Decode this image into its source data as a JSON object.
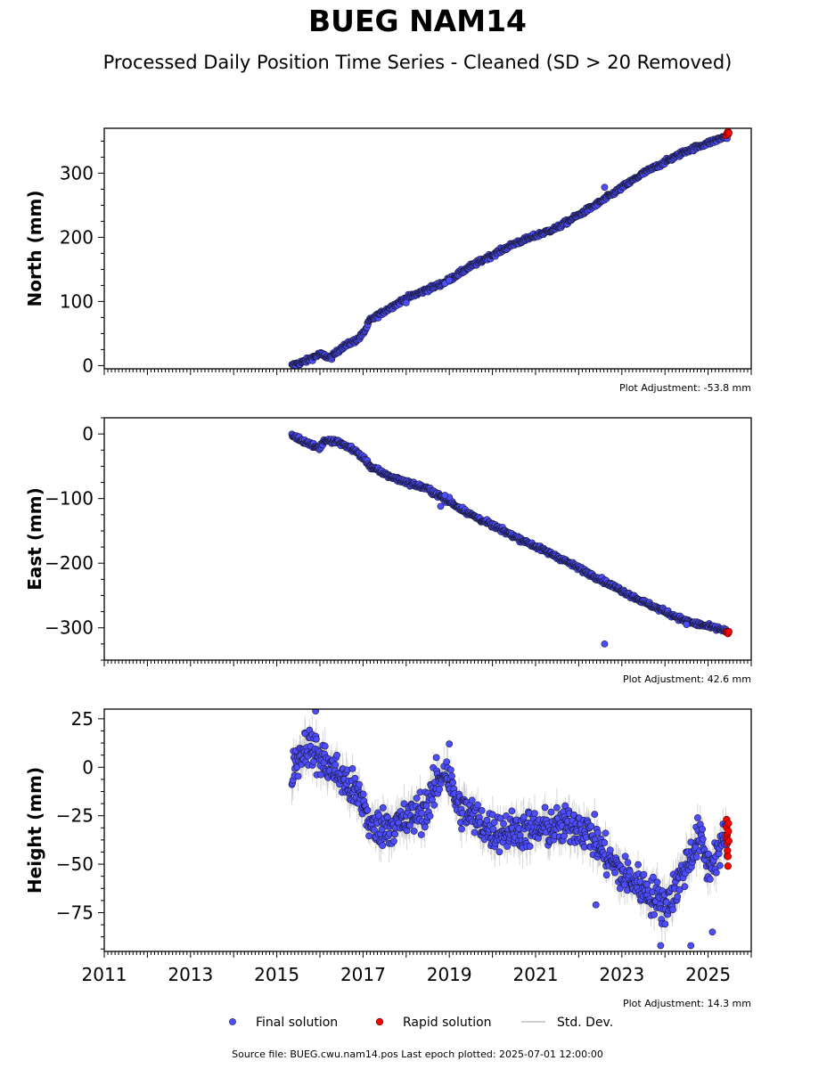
{
  "title": "BUEG NAM14",
  "subtitle": "Processed Daily Position Time Series - Cleaned (SD > 20 Removed)",
  "colors": {
    "final": "#4d4dff",
    "final_edge": "#1a1a3a",
    "rapid": "#ff0000",
    "std": "#bdbdbd"
  },
  "legend": {
    "final": "Final solution",
    "rapid": "Rapid solution",
    "std": "Std. Dev.",
    "placement": "bottom-center"
  },
  "footer": {
    "source": "Source file: BUEG.cwu.nam14.pos",
    "last_epoch": "Last epoch plotted: 2025-07-01 12:00:00"
  },
  "chart_data": [
    {
      "type": "scatter",
      "ylabel": "North (mm)",
      "adjustment": "Plot Adjustment: -53.8 mm",
      "xlim": [
        2011,
        2026
      ],
      "ylim": [
        -5,
        370
      ],
      "yticks": [
        0,
        100,
        200,
        300
      ],
      "ytick_labels": [
        "0",
        "100",
        "200",
        "300"
      ],
      "grid": false,
      "series": [
        {
          "name": "Final solution",
          "trend": [
            [
              2015.35,
              0
            ],
            [
              2015.7,
              8
            ],
            [
              2016.0,
              18
            ],
            [
              2016.25,
              12
            ],
            [
              2016.5,
              28
            ],
            [
              2016.9,
              42
            ],
            [
              2017.05,
              55
            ],
            [
              2017.15,
              70
            ],
            [
              2017.5,
              85
            ],
            [
              2018.0,
              105
            ],
            [
              2018.9,
              130
            ],
            [
              2019.5,
              155
            ],
            [
              2020.5,
              190
            ],
            [
              2021.5,
              215
            ],
            [
              2022.5,
              255
            ],
            [
              2023.5,
              300
            ],
            [
              2024.5,
              335
            ],
            [
              2025.45,
              358
            ]
          ],
          "noise": 2.5,
          "outliers": [
            [
              2022.6,
              278
            ],
            [
              2018.9,
              128
            ],
            [
              2019.0,
              133
            ],
            [
              2018.0,
              98
            ]
          ]
        },
        {
          "name": "Rapid solution",
          "x": [
            2025.42,
            2025.44,
            2025.46,
            2025.47,
            2025.48
          ],
          "y": [
            359,
            362,
            365,
            361,
            363
          ]
        }
      ]
    },
    {
      "type": "scatter",
      "ylabel": "East (mm)",
      "adjustment": "Plot Adjustment: 42.6 mm",
      "xlim": [
        2011,
        2026
      ],
      "ylim": [
        -350,
        25
      ],
      "yticks": [
        -300,
        -200,
        -100,
        0
      ],
      "ytick_labels": [
        "−300",
        "−200",
        "−100",
        "0"
      ],
      "grid": false,
      "series": [
        {
          "name": "Final solution",
          "trend": [
            [
              2015.35,
              -2
            ],
            [
              2015.65,
              -12
            ],
            [
              2016.0,
              -22
            ],
            [
              2016.1,
              -10
            ],
            [
              2016.4,
              -12
            ],
            [
              2016.8,
              -25
            ],
            [
              2017.05,
              -40
            ],
            [
              2017.2,
              -52
            ],
            [
              2017.7,
              -68
            ],
            [
              2018.5,
              -85
            ],
            [
              2019.0,
              -105
            ],
            [
              2019.5,
              -125
            ],
            [
              2020.5,
              -158
            ],
            [
              2021.5,
              -190
            ],
            [
              2022.5,
              -225
            ],
            [
              2023.5,
              -260
            ],
            [
              2024.5,
              -290
            ],
            [
              2025.45,
              -305
            ]
          ],
          "noise": 2.5,
          "outliers": [
            [
              2022.6,
              -325
            ],
            [
              2018.8,
              -112
            ],
            [
              2019.0,
              -98
            ],
            [
              2018.9,
              -95
            ],
            [
              2024.5,
              -295
            ]
          ]
        },
        {
          "name": "Rapid solution",
          "x": [
            2025.42,
            2025.44,
            2025.46,
            2025.48
          ],
          "y": [
            -306,
            -307,
            -309,
            -306
          ]
        }
      ]
    },
    {
      "type": "scatter",
      "ylabel": "Height (mm)",
      "adjustment": "Plot Adjustment: 14.3 mm",
      "xlim": [
        2011,
        2026
      ],
      "ylim": [
        -95,
        30
      ],
      "yticks": [
        -75,
        -50,
        -25,
        0,
        25
      ],
      "ytick_labels": [
        "−75",
        "−50",
        "−25",
        "0",
        "25"
      ],
      "grid": false,
      "series": [
        {
          "name": "Final solution",
          "trend": [
            [
              2015.35,
              0
            ],
            [
              2015.7,
              12
            ],
            [
              2016.0,
              5
            ],
            [
              2016.5,
              -5
            ],
            [
              2017.0,
              -18
            ],
            [
              2017.2,
              -32
            ],
            [
              2018.0,
              -28
            ],
            [
              2018.5,
              -20
            ],
            [
              2018.9,
              0
            ],
            [
              2019.2,
              -20
            ],
            [
              2020.0,
              -33
            ],
            [
              2021.0,
              -32
            ],
            [
              2022.0,
              -30
            ],
            [
              2022.3,
              -35
            ],
            [
              2022.6,
              -45
            ],
            [
              2023.0,
              -55
            ],
            [
              2023.5,
              -62
            ],
            [
              2024.0,
              -72
            ],
            [
              2024.3,
              -60
            ],
            [
              2024.8,
              -35
            ],
            [
              2025.0,
              -52
            ],
            [
              2025.45,
              -35
            ]
          ],
          "noise": 7,
          "outliers": [
            [
              2015.9,
              29
            ],
            [
              2023.9,
              -92
            ],
            [
              2024.6,
              -92
            ],
            [
              2022.4,
              -71
            ],
            [
              2019.0,
              12
            ],
            [
              2018.7,
              5
            ],
            [
              2025.1,
              -85
            ]
          ]
        },
        {
          "name": "Rapid solution",
          "x": [
            2025.43,
            2025.43,
            2025.44,
            2025.44,
            2025.45,
            2025.45,
            2025.46,
            2025.46,
            2025.47,
            2025.47,
            2025.48
          ],
          "y": [
            -27,
            -31,
            -35,
            -37,
            -39,
            -43,
            -46,
            -51,
            -29,
            -33,
            -38
          ]
        }
      ]
    }
  ],
  "x_axis": {
    "ticks": [
      2011,
      2013,
      2015,
      2017,
      2019,
      2021,
      2023,
      2025
    ],
    "tick_labels": [
      "2011",
      "2013",
      "2015",
      "2017",
      "2019",
      "2021",
      "2023",
      "2025"
    ]
  }
}
